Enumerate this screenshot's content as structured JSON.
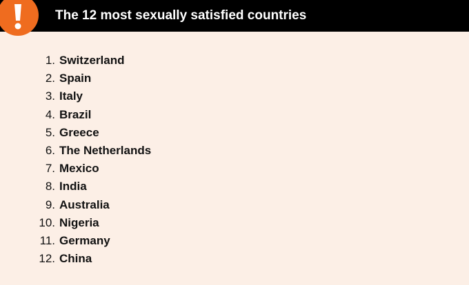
{
  "header": {
    "title": "The 12 most sexually satisfied countries"
  },
  "list": {
    "items": [
      {
        "number": "1.",
        "name": "Switzerland"
      },
      {
        "number": "2.",
        "name": "Spain"
      },
      {
        "number": "3.",
        "name": "Italy"
      },
      {
        "number": "4.",
        "name": "Brazil"
      },
      {
        "number": "5.",
        "name": "Greece"
      },
      {
        "number": "6.",
        "name": "The Netherlands"
      },
      {
        "number": "7.",
        "name": "Mexico"
      },
      {
        "number": "8.",
        "name": "India"
      },
      {
        "number": "9.",
        "name": "Australia"
      },
      {
        "number": "10.",
        "name": "Nigeria"
      },
      {
        "number": "11.",
        "name": "Germany"
      },
      {
        "number": "12.",
        "name": "China"
      }
    ]
  }
}
